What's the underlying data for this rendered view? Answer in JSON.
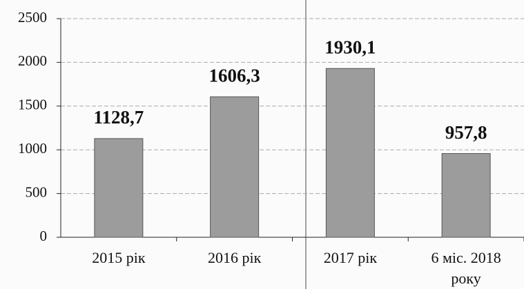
{
  "chart_data": {
    "type": "bar",
    "categories": [
      "2015 рік",
      "2016 рік",
      "2017 рік",
      "6 міс. 2018 року"
    ],
    "values": [
      1128.7,
      1606.3,
      1930.1,
      957.8
    ],
    "value_labels": [
      "1128,7",
      "1606,3",
      "1930,1",
      "957,8"
    ],
    "color": "#9c9c9c",
    "ylim": [
      0,
      2500
    ],
    "yticks": [
      0,
      500,
      1000,
      1500,
      2000,
      2500
    ],
    "grid": true
  }
}
